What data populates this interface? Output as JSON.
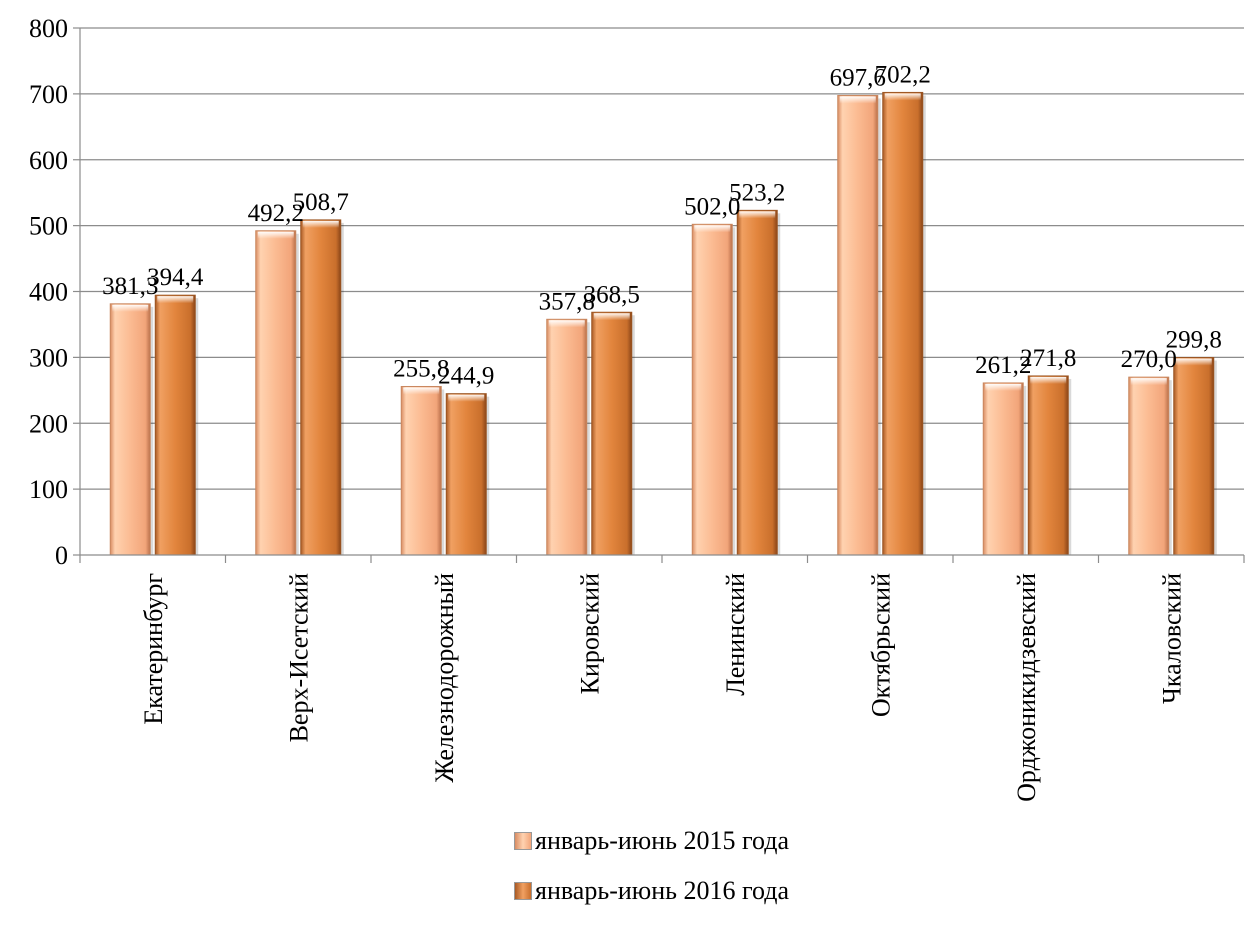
{
  "chart_data": {
    "type": "bar",
    "categories": [
      "Екатеринбург",
      "Верх-Исетский",
      "Железнодорожный",
      "Кировский",
      "Ленинский",
      "Октябрьский",
      "Орджоникидзевский",
      "Чкаловский"
    ],
    "series": [
      {
        "name": "январь-июнь 2015 года",
        "values": [
          381.3,
          492.2,
          255.8,
          357.8,
          502.0,
          697.6,
          261.2,
          270.0
        ],
        "labels": [
          "381,3",
          "492,2",
          "255,8",
          "357,8",
          "502,0",
          "697,6",
          "261,2",
          "270,0"
        ],
        "color": "#F9B98E"
      },
      {
        "name": "январь-июнь 2016 года",
        "values": [
          394.4,
          508.7,
          244.9,
          368.5,
          523.2,
          702.2,
          271.8,
          299.8
        ],
        "labels": [
          "394,4",
          "508,7",
          "244,9",
          "368,5",
          "523,2",
          "702,2",
          "271,8",
          "299,8"
        ],
        "color": "#E0823A"
      }
    ],
    "ylim": [
      0,
      800
    ],
    "yticks": [
      "0",
      "100",
      "200",
      "300",
      "400",
      "500",
      "600",
      "700",
      "800"
    ],
    "grid": true,
    "legend_position": "bottom"
  }
}
